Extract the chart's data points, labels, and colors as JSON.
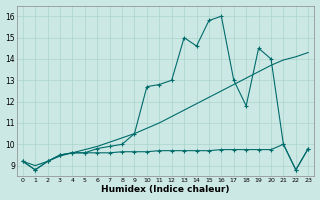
{
  "xlabel": "Humidex (Indice chaleur)",
  "xlim": [
    -0.5,
    23.5
  ],
  "ylim": [
    8.5,
    16.5
  ],
  "xticks": [
    0,
    1,
    2,
    3,
    4,
    5,
    6,
    7,
    8,
    9,
    10,
    11,
    12,
    13,
    14,
    15,
    16,
    17,
    18,
    19,
    20,
    21,
    22,
    23
  ],
  "yticks": [
    9,
    10,
    11,
    12,
    13,
    14,
    15,
    16
  ],
  "bg_color": "#cce8e4",
  "line_color": "#006b6b",
  "grid_color": "#aad4cc",
  "series1_x": [
    0,
    1,
    2,
    3,
    4,
    5,
    6,
    7,
    8,
    9,
    10,
    11,
    12,
    13,
    14,
    15,
    16,
    17,
    18,
    19,
    20,
    21,
    22,
    23
  ],
  "series1_y": [
    9.2,
    8.8,
    9.2,
    9.5,
    9.6,
    9.6,
    9.8,
    9.9,
    10.0,
    10.5,
    12.7,
    12.8,
    13.0,
    15.0,
    14.6,
    15.8,
    16.0,
    13.0,
    11.8,
    14.5,
    14.0,
    10.0,
    8.8,
    9.8
  ],
  "series2_x": [
    0,
    1,
    2,
    3,
    4,
    5,
    6,
    7,
    8,
    9,
    10,
    11,
    12,
    13,
    14,
    15,
    16,
    17,
    18,
    19,
    20,
    21,
    22,
    23
  ],
  "series2_y": [
    9.2,
    9.0,
    9.2,
    9.45,
    9.6,
    9.75,
    9.9,
    10.1,
    10.3,
    10.5,
    10.75,
    11.0,
    11.3,
    11.6,
    11.9,
    12.2,
    12.5,
    12.8,
    13.1,
    13.4,
    13.7,
    13.95,
    14.1,
    14.3
  ],
  "series3_x": [
    0,
    1,
    2,
    3,
    4,
    5,
    6,
    7,
    8,
    9,
    10,
    11,
    12,
    13,
    14,
    15,
    16,
    17,
    18,
    19,
    20,
    21,
    22,
    23
  ],
  "series3_y": [
    9.2,
    8.8,
    9.2,
    9.5,
    9.6,
    9.6,
    9.6,
    9.6,
    9.65,
    9.65,
    9.65,
    9.7,
    9.7,
    9.7,
    9.7,
    9.7,
    9.75,
    9.75,
    9.75,
    9.75,
    9.75,
    10.0,
    8.8,
    9.8
  ]
}
